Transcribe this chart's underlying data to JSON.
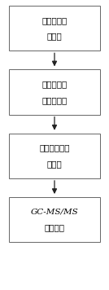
{
  "boxes": [
    {
      "line1": "细支卷烟逐",
      "line2": "口抽吸"
    },
    {
      "line1": "滤相物超声",
      "line2": "萃取和离心"
    },
    {
      "line1": "离心液有机相",
      "line2": "过滤膜"
    },
    {
      "line1": "GC-MS/MS",
      "line2": "仪器分析"
    }
  ],
  "box_color": "#ffffff",
  "box_edge_color": "#666666",
  "arrow_color": "#222222",
  "background_color": "#ffffff",
  "font_size": 7.5,
  "fig_width": 1.34,
  "fig_height": 3.56,
  "dpi": 100
}
